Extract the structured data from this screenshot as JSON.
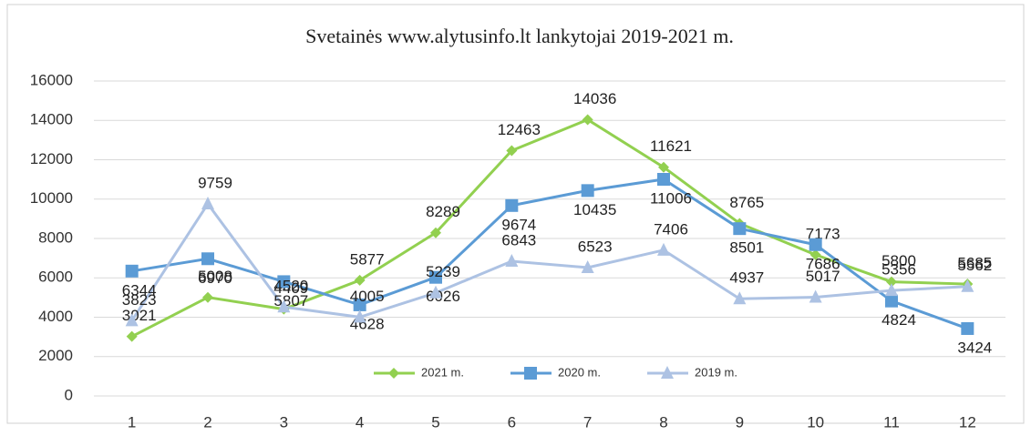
{
  "chart_data": {
    "type": "line",
    "title": "Svetainės www.alytusinfo.lt lankytojai 2019-2021  m.",
    "categories": [
      1,
      2,
      3,
      4,
      5,
      6,
      7,
      8,
      9,
      10,
      11,
      12
    ],
    "series": [
      {
        "name": "2021 m.",
        "color": "#92d050",
        "marker": "diamond",
        "values": [
          3021,
          5008,
          4409,
          5877,
          8289,
          12463,
          14036,
          11621,
          8765,
          7173,
          5800,
          5685
        ]
      },
      {
        "name": "2020 m.",
        "color": "#5b9bd5",
        "marker": "square",
        "values": [
          6344,
          6970,
          5807,
          4628,
          6026,
          9674,
          10435,
          11006,
          8501,
          7686,
          4824,
          3424
        ]
      },
      {
        "name": "2019 m.",
        "color": "#adc2e3",
        "marker": "triangle",
        "values": [
          3823,
          9759,
          4520,
          4005,
          5239,
          6843,
          6523,
          7406,
          4937,
          5017,
          5356,
          5562
        ]
      }
    ],
    "ylim": [
      0,
      16000
    ],
    "yticks": [
      0,
      2000,
      4000,
      6000,
      8000,
      10000,
      12000,
      14000,
      16000
    ],
    "grid": true,
    "legend": "bottom"
  }
}
